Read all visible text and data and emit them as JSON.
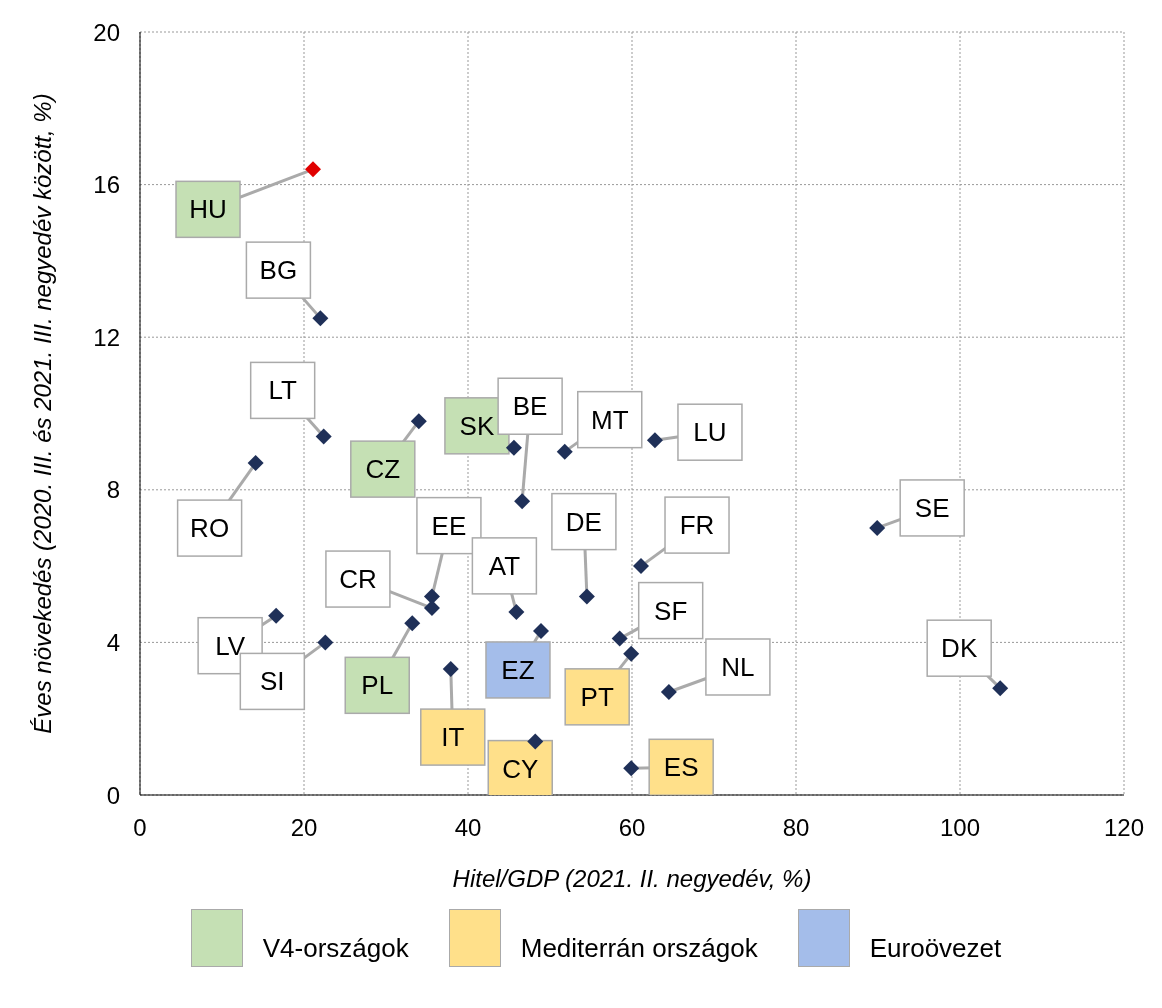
{
  "chart_data": {
    "type": "scatter",
    "xlabel": "Hitel/GDP (2021. II. negyedév, %)",
    "ylabel": "Éves növekedés (2020. III. és 2021. III. negyedév között, %)",
    "xlim": [
      0,
      120
    ],
    "xticks": [
      0,
      20,
      40,
      60,
      80,
      100,
      120
    ],
    "ylim": [
      0,
      20
    ],
    "yticks": [
      0,
      4,
      8,
      12,
      16,
      20
    ],
    "grid": true,
    "marker": "diamond",
    "annotations": [
      "V4-országok",
      "Mediterrán országok",
      "Euroövezet"
    ],
    "series": [
      {
        "color": "#1f3058",
        "x": [
          21.1,
          34.0,
          45.6,
          33.2
        ],
        "values": [
          16.4,
          9.8,
          9.1,
          4.5
        ],
        "colors": [
          "#e00000",
          "#1f3058",
          "#1f3058",
          "#1f3058"
        ],
        "value_labels": [
          "HU",
          "CZ",
          "SK",
          "PL"
        ]
      },
      {
        "color": "#1f3058",
        "x": [
          37.9,
          48.2,
          59.9,
          59.9
        ],
        "values": [
          3.3,
          1.4,
          3.7,
          0.7
        ],
        "value_labels": [
          "IT",
          "CY",
          "PT",
          "ES"
        ]
      },
      {
        "color": "#1f3058",
        "x": [
          48.9
        ],
        "values": [
          4.3
        ],
        "value_labels": [
          "EZ"
        ]
      },
      {
        "color": "#1f3058",
        "x": [
          22.0,
          22.4,
          14.1,
          46.6,
          51.8,
          62.8,
          89.9,
          61.1,
          54.5,
          35.6,
          35.6,
          45.9,
          16.6,
          22.6,
          58.5,
          64.5,
          104.9
        ],
        "values": [
          12.5,
          9.4,
          8.7,
          7.7,
          9.0,
          9.3,
          7.0,
          6.0,
          5.2,
          5.2,
          4.9,
          4.8,
          4.7,
          4.0,
          4.1,
          2.7,
          2.8
        ],
        "value_labels": [
          "BG",
          "LT",
          "RO",
          "BE",
          "MT",
          "LU",
          "SE",
          "FR",
          "DE",
          "EE",
          "CR",
          "AT",
          "LV",
          "SI",
          "SF",
          "NL",
          "DK"
        ]
      }
    ]
  }
}
